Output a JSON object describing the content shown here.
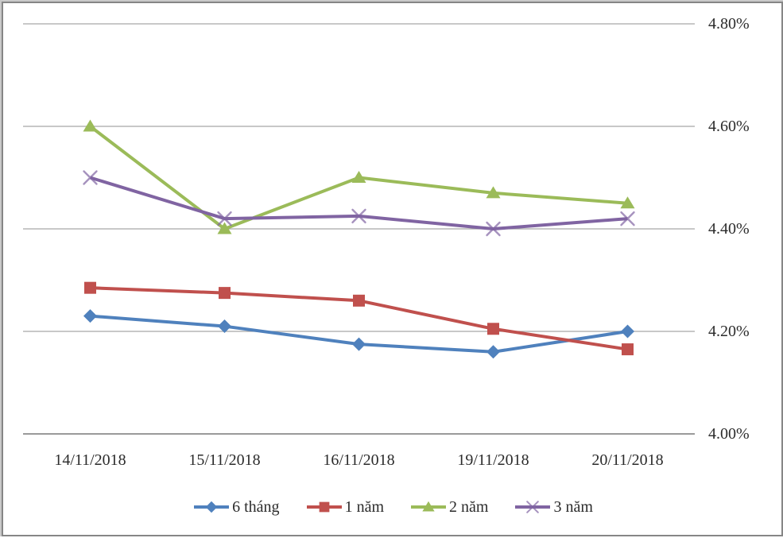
{
  "chart_data": {
    "type": "line",
    "categories": [
      "14/11/2018",
      "15/11/2018",
      "16/11/2018",
      "19/11/2018",
      "20/11/2018"
    ],
    "series": [
      {
        "name": "6 tháng",
        "color": "#4f81bd",
        "marker": "diamond",
        "values": [
          4.23,
          4.21,
          4.175,
          4.16,
          4.2
        ]
      },
      {
        "name": "1 năm",
        "color": "#c0504d",
        "marker": "square",
        "values": [
          4.285,
          4.275,
          4.26,
          4.205,
          4.165
        ]
      },
      {
        "name": "2 năm",
        "color": "#9bbb59",
        "marker": "triangle",
        "values": [
          4.6,
          4.4,
          4.5,
          4.47,
          4.45
        ]
      },
      {
        "name": "3 năm",
        "color": "#8064a2",
        "marker": "x",
        "values": [
          4.5,
          4.42,
          4.425,
          4.4,
          4.42
        ]
      }
    ],
    "title": "",
    "xlabel": "",
    "ylabel": "",
    "ylim": [
      4.0,
      4.8
    ],
    "y_ticks": [
      4.0,
      4.2,
      4.4,
      4.6,
      4.8
    ],
    "y_tick_labels": [
      "4.00%",
      "4.20%",
      "4.40%",
      "4.60%",
      "4.80%"
    ],
    "y_axis_side": "right",
    "grid": true,
    "legend_position": "bottom",
    "gridline_color": "#a6a6a6",
    "axis_line_color": "#8c8c8c"
  }
}
